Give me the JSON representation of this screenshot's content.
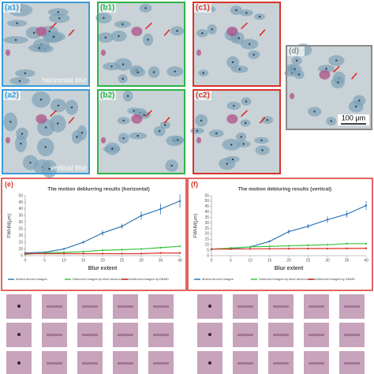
{
  "panels": [
    {
      "label": "(a1)",
      "caption": "horizontal blur"
    },
    {
      "label": "(b1)"
    },
    {
      "label": "(c1)"
    },
    {
      "label": "(a2)",
      "caption": "vertical blur"
    },
    {
      "label": "(b2)"
    },
    {
      "label": "(c2)"
    },
    {
      "label": "(d)",
      "caption": "100 μm"
    }
  ],
  "chart_data": [
    {
      "type": "line",
      "panel_label": "(e)",
      "title": "The motion deblurring results (horizontal)",
      "x_label": "Blur extent",
      "y_label": "FWHM(μm)",
      "x": [
        0,
        5,
        10,
        15,
        20,
        25,
        30,
        35,
        40
      ],
      "xlim": [
        0,
        40
      ],
      "xticks": [
        0,
        5,
        10,
        15,
        20,
        25,
        30,
        35,
        40
      ],
      "ylim": [
        5,
        50
      ],
      "yticks": [
        5,
        10,
        15,
        20,
        25,
        30,
        35,
        40,
        45,
        50
      ],
      "series": [
        {
          "name": "Motion blurred images",
          "color": "#2e75b6",
          "values": [
            7,
            7.5,
            10,
            15,
            22,
            27,
            35,
            40,
            46
          ],
          "errors": [
            0.5,
            0.5,
            0.7,
            1,
            2,
            2,
            3,
            4,
            5
          ]
        },
        {
          "name": "Deblurred images by blind deconvolution",
          "color": "#3cc43c",
          "values": [
            6,
            7,
            7.5,
            8,
            9,
            9.5,
            10,
            11,
            12
          ]
        },
        {
          "name": "Deblurred images by DBMD",
          "color": "#d9322b",
          "values": [
            6.5,
            6.5,
            6.5,
            6.5,
            6.5,
            6.5,
            6.5,
            7,
            7
          ]
        }
      ]
    },
    {
      "type": "line",
      "panel_label": "(f)",
      "title": "The motion debluring results (vertical)",
      "x_label": "Blur extent",
      "y_label": "FWHM(μm)",
      "x": [
        0,
        5,
        10,
        15,
        20,
        25,
        30,
        35,
        40
      ],
      "xlim": [
        0,
        40
      ],
      "xticks": [
        0,
        5,
        10,
        15,
        20,
        25,
        30,
        35,
        40
      ],
      "ylim": [
        0,
        55
      ],
      "yticks": [
        0,
        5,
        10,
        15,
        20,
        25,
        30,
        35,
        40,
        45,
        50,
        55
      ],
      "series": [
        {
          "name": "Motion blurred images",
          "color": "#2e75b6",
          "values": [
            6,
            6.5,
            8,
            13,
            22,
            27,
            33,
            38,
            46
          ],
          "errors": [
            0.5,
            0.5,
            0.7,
            1,
            2,
            2,
            3,
            3,
            4
          ]
        },
        {
          "name": "Deblurred images by blind deconvolution",
          "color": "#3cc43c",
          "values": [
            6,
            7,
            8,
            8.5,
            9,
            9.5,
            10,
            11,
            11
          ]
        },
        {
          "name": "Deblurred images by DBMD",
          "color": "#d9322b",
          "values": [
            6,
            6,
            6.2,
            6.3,
            6.4,
            6.5,
            6.5,
            6.6,
            6.7
          ]
        }
      ]
    }
  ]
}
